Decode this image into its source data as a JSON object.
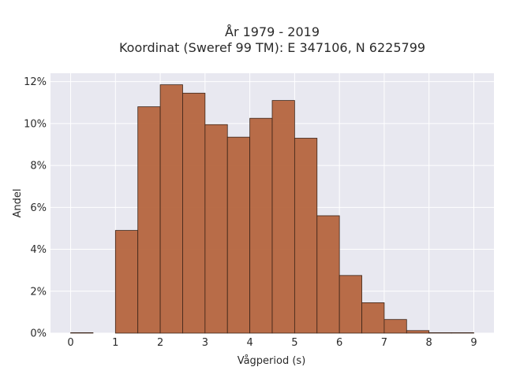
{
  "chart_data": {
    "type": "bar",
    "title_lines": [
      "År 1979 - 2019",
      "Koordinat (Sweref 99 TM): E 347106, N 6225799"
    ],
    "xlabel": "Vågperiod (s)",
    "ylabel": "Andel",
    "bin_width": 0.5,
    "bin_starts": [
      0,
      0.5,
      1,
      1.5,
      2,
      2.5,
      3,
      3.5,
      4,
      4.5,
      5,
      5.5,
      6,
      6.5,
      7,
      7.5,
      8,
      8.5
    ],
    "values": [
      0.02,
      0,
      4.9,
      10.8,
      11.85,
      11.45,
      9.95,
      9.35,
      10.25,
      11.1,
      9.3,
      5.6,
      2.75,
      1.45,
      0.65,
      0.12,
      0.02,
      0.02
    ],
    "xlim": [
      -0.45,
      9.45
    ],
    "ylim": [
      0,
      12.4
    ],
    "x_ticks": [
      "0",
      "1",
      "2",
      "3",
      "4",
      "5",
      "6",
      "7",
      "8",
      "9"
    ],
    "y_ticks": [
      "0%",
      "2%",
      "4%",
      "6%",
      "8%",
      "10%",
      "12%"
    ],
    "grid": true,
    "colors": {
      "bar_fill": "#b5653e",
      "bar_edge": "#3b2418",
      "plot_bg": "#e8e8f0",
      "grid": "#ffffff"
    }
  }
}
